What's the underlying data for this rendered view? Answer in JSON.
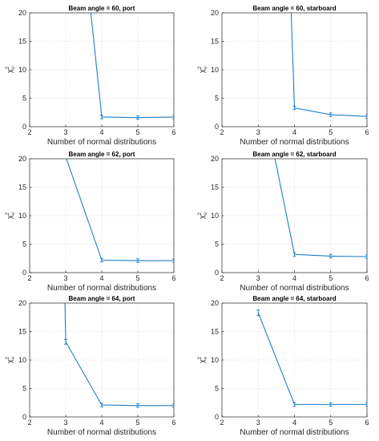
{
  "chart_data": [
    {
      "type": "line",
      "title": "Beam angle = 60, port",
      "xlabel": "Number of normal distributions",
      "ylabel": "χ²ν",
      "ylabel_base": "χ",
      "ylabel_sup": "2",
      "ylabel_sub": "ν",
      "xlim": [
        2,
        6
      ],
      "ylim": [
        0,
        20
      ],
      "xticks": [
        2,
        3,
        4,
        5,
        6
      ],
      "yticks": [
        0,
        5,
        10,
        15,
        20
      ],
      "grid": true,
      "series": [
        {
          "x": [
            3.5,
            4,
            5,
            6
          ],
          "y": [
            32,
            1.7,
            1.6,
            1.7
          ],
          "err": [
            0,
            0.2,
            0.2,
            0.2
          ]
        }
      ]
    },
    {
      "type": "line",
      "title": "Beam angle = 60, starboard",
      "xlabel": "Number of normal distributions",
      "ylabel": "χ²ν",
      "ylabel_base": "χ",
      "ylabel_sup": "2",
      "ylabel_sub": "ν",
      "xlim": [
        2,
        6
      ],
      "ylim": [
        0,
        20
      ],
      "xticks": [
        2,
        3,
        4,
        5,
        6
      ],
      "yticks": [
        0,
        5,
        10,
        15,
        20
      ],
      "grid": true,
      "series": [
        {
          "x": [
            3.8,
            4,
            5,
            6
          ],
          "y": [
            40,
            3.3,
            2.1,
            1.8
          ],
          "err": [
            0,
            0.2,
            0.2,
            0.2
          ]
        }
      ]
    },
    {
      "type": "line",
      "title": "Beam angle = 62, port",
      "xlabel": "Number of normal distributions",
      "ylabel": "χ²ν",
      "ylabel_base": "χ",
      "ylabel_sup": "2",
      "ylabel_sub": "ν",
      "xlim": [
        2,
        6
      ],
      "ylim": [
        0,
        20
      ],
      "xticks": [
        2,
        3,
        4,
        5,
        6
      ],
      "yticks": [
        0,
        5,
        10,
        15,
        20
      ],
      "grid": true,
      "series": [
        {
          "x": [
            2.8,
            4,
            5,
            6
          ],
          "y": [
            24,
            2.2,
            2.1,
            2.1
          ],
          "err": [
            0,
            0.2,
            0.2,
            0.2
          ]
        }
      ]
    },
    {
      "type": "line",
      "title": "Beam angle = 62, starboard",
      "xlabel": "Number of normal distributions",
      "ylabel": "χ²ν",
      "ylabel_base": "χ",
      "ylabel_sup": "2",
      "ylabel_sub": "ν",
      "xlim": [
        2,
        6
      ],
      "ylim": [
        0,
        20
      ],
      "xticks": [
        2,
        3,
        4,
        5,
        6
      ],
      "yticks": [
        0,
        5,
        10,
        15,
        20
      ],
      "grid": true,
      "series": [
        {
          "x": [
            3.4,
            4,
            5,
            6
          ],
          "y": [
            22,
            3.2,
            2.9,
            2.8
          ],
          "err": [
            0,
            0.2,
            0.2,
            0.2
          ]
        }
      ]
    },
    {
      "type": "line",
      "title": "Beam angle = 64, port",
      "xlabel": "Number of normal distributions",
      "ylabel": "χ²ν",
      "ylabel_base": "χ",
      "ylabel_sup": "2",
      "ylabel_sub": "ν",
      "xlim": [
        2,
        6
      ],
      "ylim": [
        0,
        20
      ],
      "xticks": [
        2,
        3,
        4,
        5,
        6
      ],
      "yticks": [
        0,
        5,
        10,
        15,
        20
      ],
      "grid": true,
      "series": [
        {
          "x": [
            2.95,
            3,
            4,
            5,
            6
          ],
          "y": [
            30,
            13.2,
            2.1,
            2.0,
            2.0
          ],
          "err": [
            0,
            0.3,
            0.2,
            0.2,
            0.2
          ]
        }
      ]
    },
    {
      "type": "line",
      "title": "Beam angle = 64, starboard",
      "xlabel": "Number of normal distributions",
      "ylabel": "χ²ν",
      "ylabel_base": "χ",
      "ylabel_sup": "2",
      "ylabel_sub": "ν",
      "xlim": [
        2,
        6
      ],
      "ylim": [
        0,
        20
      ],
      "xticks": [
        2,
        3,
        4,
        5,
        6
      ],
      "yticks": [
        0,
        5,
        10,
        15,
        20
      ],
      "grid": true,
      "series": [
        {
          "x": [
            3,
            4,
            5,
            6
          ],
          "y": [
            18.3,
            2.2,
            2.2,
            2.2
          ],
          "err": [
            0.4,
            0.2,
            0.2,
            0.2
          ]
        }
      ]
    }
  ],
  "colors": {
    "series": "#1f7fc4",
    "axis": "#262626",
    "grid": "#dcdcdc"
  }
}
